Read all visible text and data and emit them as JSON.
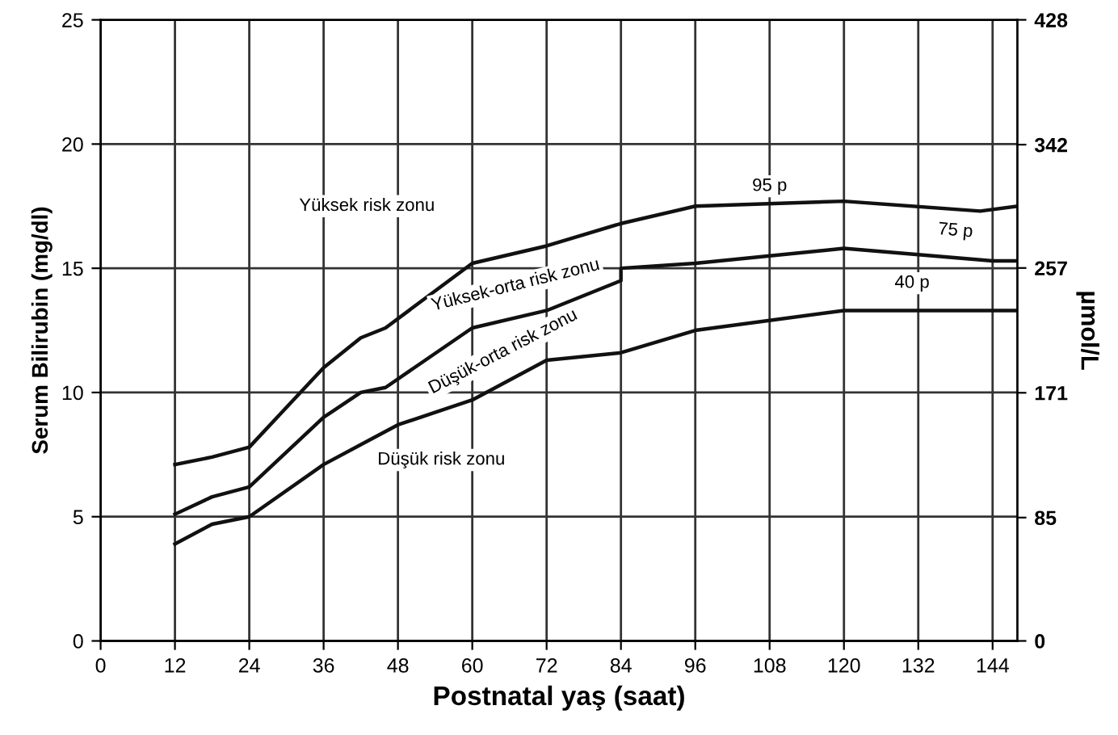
{
  "chart_data": {
    "type": "line",
    "xlabel": "Postnatal yaş (saat)",
    "ylabel": "Serum Bilirubin (mg/dl)",
    "y2label": "µmol/L",
    "xlim": [
      0,
      148
    ],
    "xticks": [
      0,
      12,
      24,
      36,
      48,
      60,
      72,
      84,
      96,
      108,
      120,
      132,
      144
    ],
    "ylim": [
      0,
      25
    ],
    "yticks": [
      0,
      5,
      10,
      15,
      20,
      25
    ],
    "y2lim": [
      0,
      428
    ],
    "y2ticks": [
      0,
      85,
      171,
      257,
      342,
      428
    ],
    "grid": true,
    "marker": "none",
    "line_style": "solid",
    "series": [
      {
        "color": "#111111",
        "x": [
          12,
          18,
          24,
          36,
          42,
          46,
          60,
          72,
          84,
          96,
          120,
          142,
          148
        ],
        "values": [
          7.1,
          7.4,
          7.8,
          11.0,
          12.2,
          12.6,
          15.2,
          15.9,
          16.8,
          17.5,
          17.7,
          17.3,
          17.5
        ]
      },
      {
        "color": "#111111",
        "x": [
          12,
          18,
          24,
          36,
          42,
          46,
          60,
          72,
          84,
          84,
          96,
          120,
          144,
          148
        ],
        "values": [
          5.1,
          5.8,
          6.2,
          9.0,
          10.0,
          10.2,
          12.6,
          13.3,
          14.5,
          15.0,
          15.2,
          15.8,
          15.3,
          15.3
        ]
      },
      {
        "color": "#111111",
        "x": [
          12,
          18,
          24,
          36,
          42,
          48,
          60,
          72,
          84,
          96,
          120,
          148
        ],
        "values": [
          3.9,
          4.7,
          5.0,
          7.1,
          7.9,
          8.7,
          9.7,
          11.3,
          11.6,
          12.5,
          13.3,
          13.3
        ]
      }
    ],
    "annotations": [
      "Yüksek risk zonu",
      "Yüksek-orta risk zonu",
      "Düşük-orta risk zonu",
      "Düşük risk zonu",
      {
        "text": "95 p",
        "x": 108,
        "y": 18.3
      },
      {
        "text": "75 p",
        "x": 138,
        "y": 16.5
      },
      {
        "text": "40 p",
        "x": 131,
        "y": 14.4
      }
    ]
  }
}
